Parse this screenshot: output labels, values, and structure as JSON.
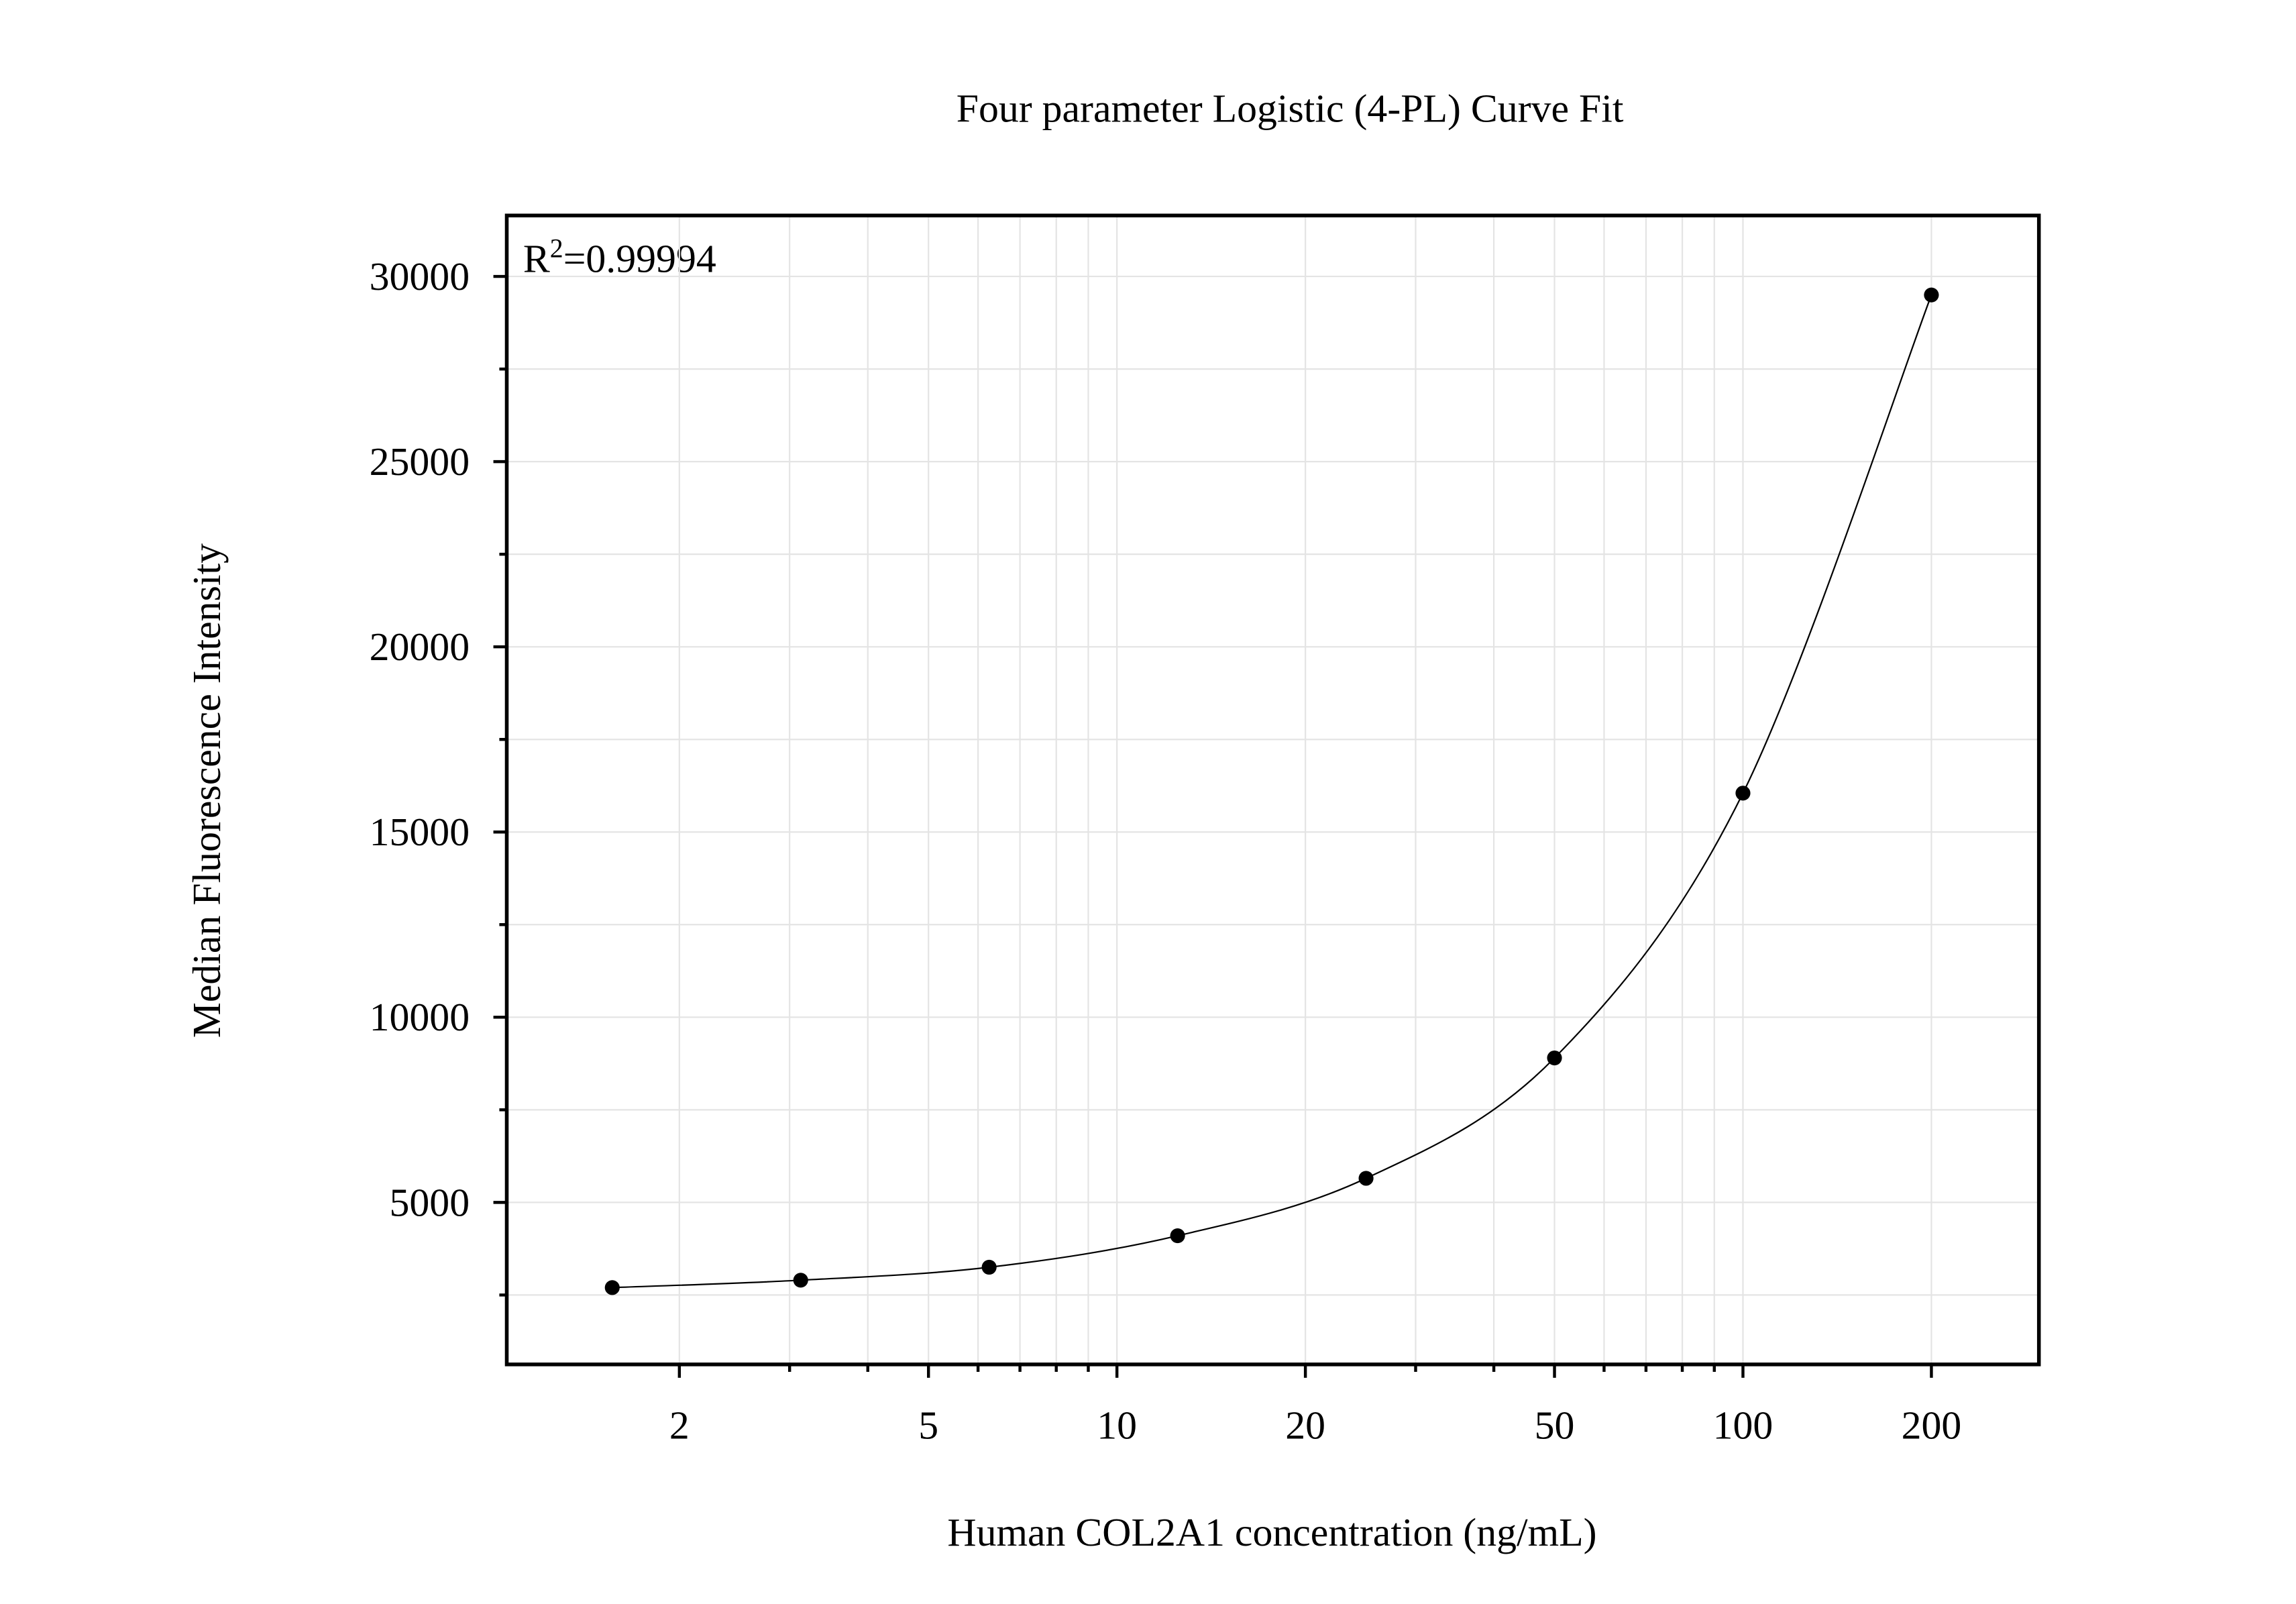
{
  "chart_data": {
    "type": "scatter",
    "title": "Four parameter Logistic (4-PL) Curve Fit",
    "x_label": "Human COL2A1 concentration (ng/mL)",
    "y_label": "Median Fluorescence Intensity",
    "annotation": [
      "R",
      "2",
      "=0.99994"
    ],
    "x": [
      1.5625,
      3.125,
      6.25,
      12.5,
      25,
      50,
      100,
      200
    ],
    "series": [
      {
        "color": "#000000",
        "values": [
          2700,
          2900,
          3250,
          4100,
          5650,
          8900,
          16050,
          29500
        ]
      }
    ],
    "xlim": [
      1.06,
      297
    ],
    "x_log": true,
    "xticks": [
      2,
      5,
      10,
      20,
      50,
      100,
      200
    ],
    "xminorticks": [
      3,
      4,
      6,
      7,
      8,
      9,
      30,
      40,
      60,
      70,
      80,
      90
    ],
    "ylim": [
      626,
      31645
    ],
    "yticks": [
      5000,
      10000,
      15000,
      20000,
      25000,
      30000
    ],
    "yminorticks": [
      2500,
      7500,
      12500,
      17500,
      22500,
      27500
    ],
    "grid": true
  }
}
